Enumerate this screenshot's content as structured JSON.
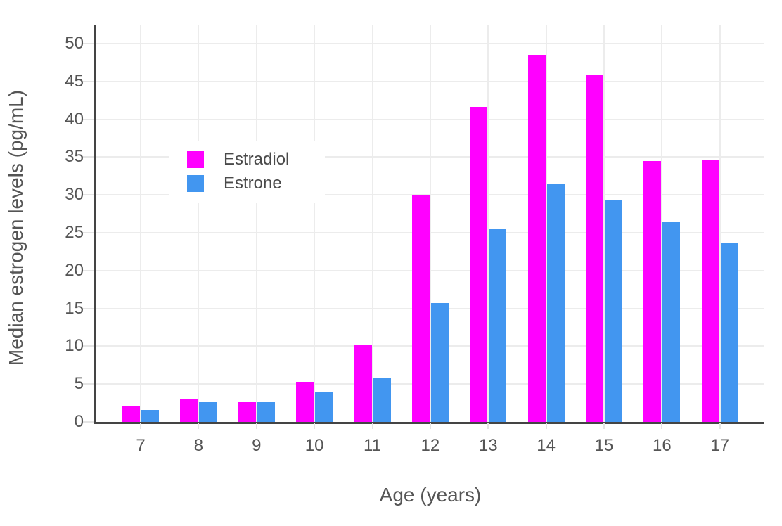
{
  "chart_data": {
    "type": "bar",
    "title": "",
    "categories": [
      "7",
      "8",
      "9",
      "10",
      "11",
      "12",
      "13",
      "14",
      "15",
      "16",
      "17"
    ],
    "series": [
      {
        "name": "Estradiol",
        "color": "#ff00ff",
        "values": [
          2.1,
          3.0,
          2.7,
          5.3,
          10.1,
          30.0,
          41.6,
          48.5,
          45.8,
          34.5,
          34.6
        ]
      },
      {
        "name": "Estrone",
        "color": "#4296f0",
        "values": [
          1.6,
          2.7,
          2.6,
          3.9,
          5.8,
          15.7,
          25.5,
          31.5,
          29.3,
          26.5,
          23.6
        ]
      }
    ],
    "xlabel": "Age (years)",
    "ylabel": "Median estrogen levels (pg/mL)",
    "ylim": [
      0,
      52.5
    ],
    "yticks": [
      0,
      5,
      10,
      15,
      20,
      25,
      30,
      35,
      40,
      45,
      50
    ],
    "grid": true,
    "legend": {
      "position": "inside-upper-left",
      "items": [
        "Estradiol",
        "Estrone"
      ]
    }
  },
  "colors": {
    "axis": "#444444",
    "gridline": "#ececec",
    "tick_text": "#555555",
    "title_text": "#555555",
    "background": "#ffffff"
  }
}
